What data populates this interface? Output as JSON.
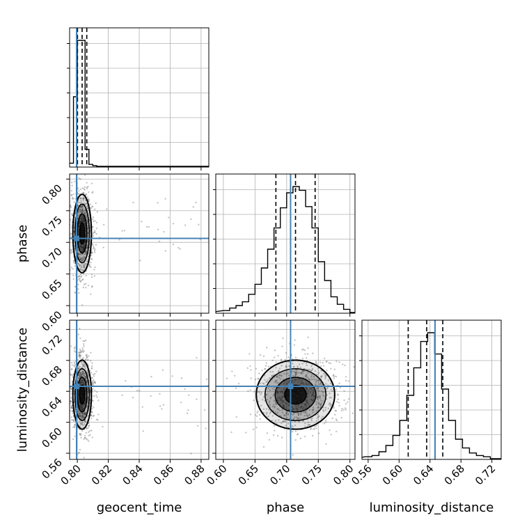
{
  "colors": {
    "truth": "#4682b4",
    "hist": "#000000",
    "grid": "#b0b0b0",
    "scatter": "#555555"
  },
  "chart_data": {
    "type": "corner",
    "parameters": [
      "geocent_time",
      "phase",
      "luminosity_distance"
    ],
    "truths": {
      "geocent_time": 0.7995,
      "phase": 0.7062,
      "luminosity_distance": 0.6465
    },
    "quantiles": {
      "geocent_time": [
        0.8001,
        0.8031,
        0.8061
      ],
      "phase": [
        0.683,
        0.714,
        0.745
      ],
      "luminosity_distance": [
        0.6118,
        0.6357,
        0.6565
      ]
    },
    "ranges": {
      "geocent_time": [
        0.795,
        0.885
      ],
      "phase": [
        0.588,
        0.808
      ],
      "luminosity_distance": [
        0.552,
        0.732
      ]
    },
    "ticks": {
      "geocent_time": [
        0.8,
        0.82,
        0.84,
        0.86,
        0.88
      ],
      "phase": [
        0.6,
        0.65,
        0.7,
        0.75,
        0.8
      ],
      "luminosity_distance": [
        0.56,
        0.6,
        0.64,
        0.68,
        0.72
      ]
    },
    "tick_labels": {
      "geocent_time": [
        "0.80",
        "0.82",
        "0.84",
        "0.86",
        "0.88"
      ],
      "phase": [
        "0.60",
        "0.65",
        "0.70",
        "0.75",
        "0.80"
      ],
      "luminosity_distance": [
        "0.56",
        "0.60",
        "0.64",
        "0.68",
        "0.72"
      ]
    },
    "histograms": {
      "geocent_time": {
        "bin_edges": [
          0.795,
          0.7975,
          0.8,
          0.8025,
          0.805,
          0.8075,
          0.81,
          0.8125
        ],
        "counts": [
          0.02,
          0.55,
          1.0,
          1.0,
          0.13,
          0.01,
          0.0
        ]
      },
      "phase": {
        "bin_edges": [
          0.6,
          0.61,
          0.62,
          0.63,
          0.64,
          0.65,
          0.66,
          0.67,
          0.68,
          0.69,
          0.7,
          0.71,
          0.72,
          0.73,
          0.74,
          0.75,
          0.76,
          0.77,
          0.78,
          0.79,
          0.8
        ],
        "counts": [
          0.01,
          0.03,
          0.05,
          0.08,
          0.14,
          0.22,
          0.35,
          0.5,
          0.67,
          0.83,
          0.95,
          1.0,
          0.97,
          0.84,
          0.67,
          0.4,
          0.25,
          0.12,
          0.06,
          0.02
        ]
      },
      "luminosity_distance": {
        "bin_edges": [
          0.556,
          0.565,
          0.574,
          0.583,
          0.592,
          0.601,
          0.61,
          0.619,
          0.628,
          0.637,
          0.646,
          0.655,
          0.664,
          0.673,
          0.682,
          0.691,
          0.7,
          0.709,
          0.718
        ],
        "counts": [
          0.01,
          0.02,
          0.05,
          0.1,
          0.18,
          0.3,
          0.5,
          0.72,
          0.93,
          1.0,
          0.83,
          0.55,
          0.3,
          0.15,
          0.08,
          0.04,
          0.02,
          0.01
        ]
      }
    },
    "grid": true,
    "axis_labels": {
      "x": [
        "geocent_time",
        "phase",
        "luminosity_distance"
      ],
      "y": [
        "",
        "phase",
        "luminosity_distance"
      ]
    }
  }
}
